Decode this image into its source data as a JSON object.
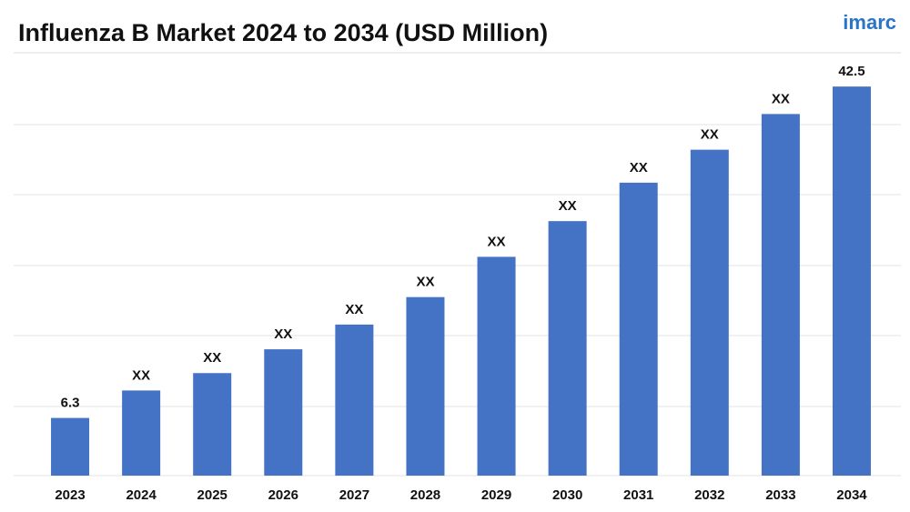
{
  "chart_data": {
    "type": "bar",
    "title": "Influenza B Market 2024 to 2034 (USD Million)",
    "logo": "imarc",
    "categories": [
      "2023",
      "2024",
      "2025",
      "2026",
      "2027",
      "2028",
      "2029",
      "2030",
      "2031",
      "2032",
      "2033",
      "2034"
    ],
    "values": [
      6.3,
      9.3,
      11.2,
      13.8,
      16.5,
      19.5,
      23.9,
      27.8,
      32.0,
      35.6,
      39.5,
      42.5
    ],
    "value_labels": [
      "6.3",
      "XX",
      "XX",
      "XX",
      "XX",
      "XX",
      "XX",
      "XX",
      "XX",
      "XX",
      "XX",
      "42.5"
    ],
    "color": "#4472c4",
    "ylim": [
      0,
      45
    ]
  }
}
